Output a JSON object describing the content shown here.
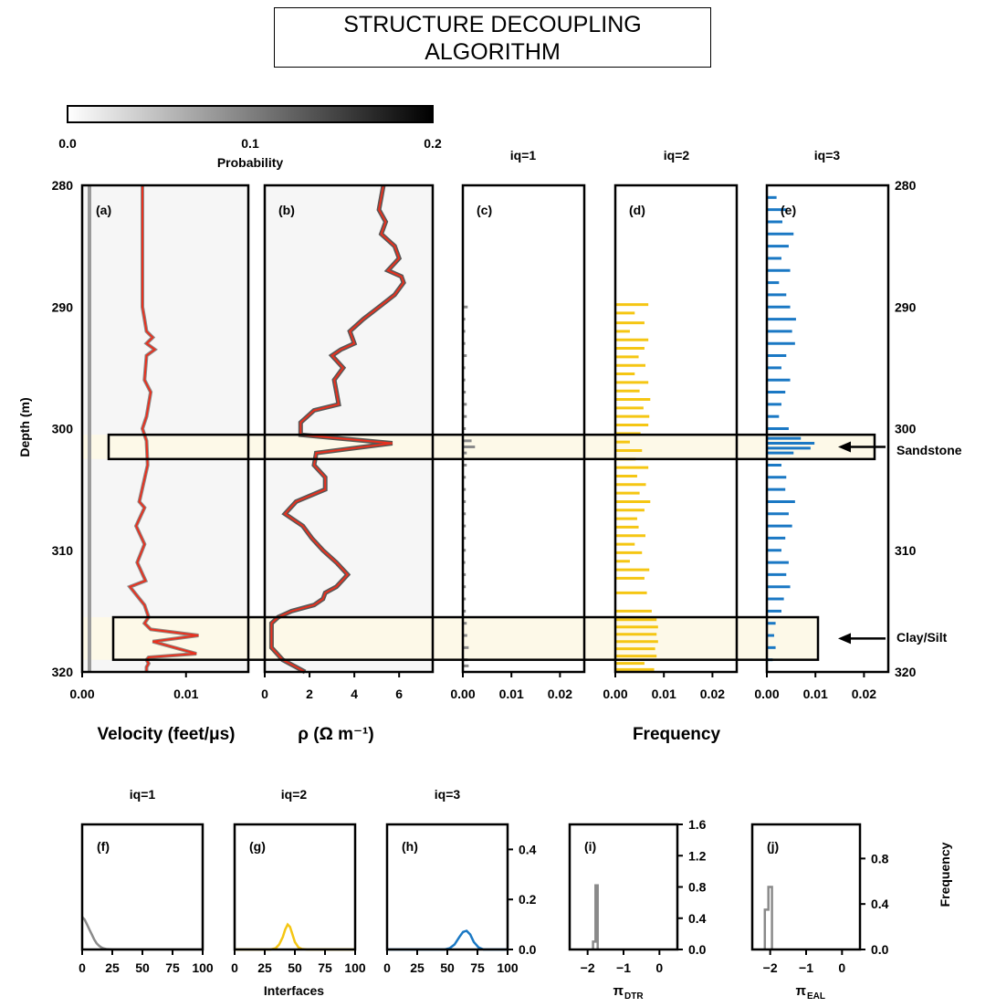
{
  "title_lines": [
    "STRUCTURE DECOUPLING",
    "ALGORITHM"
  ],
  "colorbar": {
    "ticks": [
      "0.0",
      "0.1",
      "0.2"
    ],
    "label": "Probability",
    "range": [
      0.0,
      0.2
    ],
    "colors": [
      "#ffffff",
      "#000000"
    ]
  },
  "chart_data": [
    {
      "panel": "(a)",
      "type": "line",
      "xlabel": "Velocity (feet/μs)",
      "ylabel": "Depth (m)",
      "xlim": [
        0,
        0.016
      ],
      "ylim": [
        320,
        280
      ],
      "x_ticks": [
        0.0,
        0.01
      ],
      "x_tick_labels": [
        "0.00",
        "0.01"
      ],
      "y_ticks": [
        280,
        290,
        300,
        310,
        320
      ],
      "y_tick_labels": [
        "280",
        "290",
        "300",
        "310",
        "320"
      ],
      "series": [
        {
          "color": "#e8311f",
          "x": [
            0.0058,
            0.0058,
            0.0058,
            0.006,
            0.0062,
            0.0068,
            0.0062,
            0.007,
            0.0062,
            0.006,
            0.0066,
            0.0062,
            0.0058,
            0.0062,
            0.0063,
            0.0055,
            0.006,
            0.0052,
            0.006,
            0.0053,
            0.0061,
            0.0046,
            0.006,
            0.0064,
            0.006,
            0.0066,
            0.0112,
            0.0068,
            0.011,
            0.0064,
            0.0062,
            0.0064,
            0.0062,
            0.0062
          ],
          "y": [
            280,
            285,
            290,
            291,
            292,
            292.5,
            293,
            293.5,
            294,
            296,
            297,
            299,
            300,
            301,
            303,
            306,
            306.5,
            308,
            309.5,
            311,
            312.5,
            313,
            314.5,
            315.5,
            316,
            316.5,
            317,
            317.5,
            318.5,
            318.8,
            319,
            319.3,
            319.6,
            320
          ]
        },
        {
          "color": "#9a9a9a",
          "x": [
            0.0007,
            0.0007
          ],
          "y": [
            280,
            320
          ]
        }
      ]
    },
    {
      "panel": "(b)",
      "type": "line",
      "xlabel": "ρ (Ω m⁻¹)",
      "xlim": [
        0,
        7.5
      ],
      "ylim": [
        320,
        280
      ],
      "x_ticks": [
        0,
        2,
        4,
        6
      ],
      "x_tick_labels": [
        "0",
        "2",
        "4",
        "6"
      ],
      "series": [
        {
          "color": "#e8311f",
          "x": [
            5.3,
            5.1,
            5.4,
            5.2,
            5.8,
            6.0,
            5.5,
            6.1,
            6.2,
            5.8,
            5.1,
            4.4,
            3.8,
            4.0,
            3.4,
            3.0,
            3.5,
            3.1,
            3.3,
            2.2,
            1.6,
            1.6,
            5.7,
            2.3,
            2.2,
            2.7,
            2.7,
            1.4,
            0.9,
            1.7,
            2.1,
            2.6,
            3.2,
            3.7,
            3.2,
            2.7,
            2.6,
            2.2,
            1.2,
            0.6,
            0.3,
            0.3,
            0.3,
            0.8,
            1.3,
            1.8
          ],
          "y": [
            280,
            282,
            283,
            284,
            285,
            286,
            287,
            287.5,
            288,
            289,
            290,
            291,
            292,
            293,
            293.5,
            294,
            295,
            296,
            298,
            298.5,
            299.5,
            300.5,
            301.2,
            302,
            303,
            304,
            305,
            306,
            307,
            308,
            309,
            310,
            311,
            312,
            313,
            313.5,
            314,
            314.5,
            315,
            315.5,
            316,
            317,
            318,
            319,
            319.5,
            320
          ]
        }
      ]
    },
    {
      "panel": "(c)",
      "type": "bar",
      "title": "iq=1",
      "xlim": [
        0,
        0.025
      ],
      "ylim": [
        320,
        280
      ],
      "x_tick_labels": [
        "0.00",
        "0.01",
        "0.02"
      ],
      "series": [
        {
          "color": "#8a8a8a",
          "y": [
            290,
            291,
            292,
            293,
            294,
            295,
            296,
            297,
            298,
            299,
            300,
            301,
            301.5,
            302,
            303,
            304,
            305,
            306,
            307,
            308,
            309,
            310,
            311,
            312,
            313,
            314,
            315,
            316,
            317,
            318,
            319,
            319.5
          ],
          "x": [
            0.001,
            0.0005,
            0.0005,
            0.0005,
            0.0008,
            0.0005,
            0.0005,
            0.0006,
            0.0008,
            0.0008,
            0.0006,
            0.0018,
            0.0025,
            0.0008,
            0.0008,
            0.0006,
            0.0006,
            0.0006,
            0.0006,
            0.0006,
            0.0006,
            0.0006,
            0.0005,
            0.0006,
            0.0006,
            0.0006,
            0.0006,
            0.0008,
            0.0009,
            0.0012,
            0.001,
            0.0012
          ]
        }
      ]
    },
    {
      "panel": "(d)",
      "type": "bar",
      "title": "iq=2",
      "xlim": [
        0,
        0.025
      ],
      "ylim": [
        320,
        280
      ],
      "x_tick_labels": [
        "0.00",
        "0.01",
        "0.02"
      ],
      "series": [
        {
          "color": "#f5c613",
          "y": [
            289.8,
            290.5,
            291.3,
            292,
            292.7,
            293.4,
            294.1,
            294.8,
            295.5,
            296.2,
            296.9,
            297.6,
            298.3,
            299,
            299.7,
            300.4,
            301.1,
            301.8,
            302.5,
            303.2,
            303.9,
            304.6,
            305.3,
            306,
            306.7,
            307.4,
            308.1,
            308.8,
            309.5,
            310.2,
            310.9,
            311.6,
            312.3,
            313.5,
            315,
            315.7,
            316.3,
            316.9,
            317.5,
            318.1,
            318.7,
            319.3,
            319.8
          ],
          "x": [
            0.0068,
            0.004,
            0.006,
            0.003,
            0.0068,
            0.006,
            0.0048,
            0.0062,
            0.004,
            0.0068,
            0.005,
            0.0072,
            0.0058,
            0.007,
            0.0068,
            0.0052,
            0.003,
            0.0055,
            0.0042,
            0.0068,
            0.0045,
            0.0063,
            0.005,
            0.0072,
            0.006,
            0.0045,
            0.0048,
            0.0062,
            0.004,
            0.0055,
            0.003,
            0.007,
            0.006,
            0.0065,
            0.0075,
            0.0085,
            0.0088,
            0.0085,
            0.0088,
            0.0082,
            0.0085,
            0.006,
            0.008
          ]
        }
      ]
    },
    {
      "panel": "(e)",
      "type": "bar",
      "title": "iq=3",
      "xlim": [
        0,
        0.025
      ],
      "ylim": [
        320,
        280
      ],
      "x_tick_labels": [
        "0.00",
        "0.01",
        "0.02"
      ],
      "series": [
        {
          "color": "#1a78c4",
          "y": [
            281,
            282,
            283,
            284,
            285,
            286,
            287,
            288,
            289,
            290,
            291,
            292,
            293,
            294,
            295,
            296,
            297,
            298,
            299,
            300,
            300.8,
            301.2,
            301.6,
            302,
            303,
            304,
            305,
            306,
            307,
            308,
            309,
            310,
            311,
            312,
            313,
            314,
            315,
            316,
            317,
            318,
            319
          ],
          "x": [
            0.002,
            0.004,
            0.0032,
            0.0055,
            0.0045,
            0.003,
            0.0048,
            0.0025,
            0.004,
            0.0048,
            0.006,
            0.0052,
            0.0058,
            0.004,
            0.003,
            0.0048,
            0.0038,
            0.003,
            0.0025,
            0.0045,
            0.007,
            0.0098,
            0.009,
            0.0055,
            0.003,
            0.004,
            0.0038,
            0.0058,
            0.0045,
            0.0052,
            0.0038,
            0.003,
            0.0045,
            0.004,
            0.0048,
            0.0035,
            0.003,
            0.0018,
            0.0015,
            0.0018,
            0.0012
          ]
        }
      ]
    },
    {
      "panel": "(f)",
      "type": "line",
      "title": "iq=1",
      "xlim": [
        0,
        100
      ],
      "ylim": [
        0,
        0.5
      ],
      "x_ticks": [
        0,
        25,
        50,
        75,
        100
      ],
      "series": [
        {
          "color": "#8a8a8a",
          "x": [
            0,
            2,
            4,
            6,
            8,
            10,
            12,
            14,
            16,
            18,
            20,
            25,
            100
          ],
          "y": [
            0.13,
            0.12,
            0.1,
            0.08,
            0.06,
            0.04,
            0.025,
            0.015,
            0.008,
            0.004,
            0.002,
            0,
            0
          ]
        }
      ]
    },
    {
      "panel": "(g)",
      "type": "line",
      "title": "iq=2",
      "xlim": [
        0,
        100
      ],
      "ylim": [
        0,
        0.5
      ],
      "x_ticks": [
        0,
        25,
        50,
        75,
        100
      ],
      "series": [
        {
          "color": "#f5c613",
          "x": [
            0,
            30,
            34,
            37,
            40,
            42,
            44,
            46,
            48,
            50,
            53,
            56,
            60,
            100
          ],
          "y": [
            0,
            0,
            0.005,
            0.02,
            0.05,
            0.08,
            0.1,
            0.09,
            0.06,
            0.03,
            0.008,
            0.002,
            0,
            0
          ]
        }
      ]
    },
    {
      "panel": "(h)",
      "type": "line",
      "title": "iq=3",
      "xlim": [
        0,
        100
      ],
      "ylim": [
        0,
        0.5
      ],
      "x_ticks": [
        0,
        25,
        50,
        75,
        100
      ],
      "y_ticks": [
        0.0,
        0.2,
        0.4
      ],
      "y_tick_labels": [
        "0.0",
        "0.2",
        "0.4"
      ],
      "xlabel": "Interfaces",
      "series": [
        {
          "color": "#1a78c4",
          "x": [
            0,
            48,
            52,
            56,
            60,
            63,
            66,
            69,
            72,
            76,
            80,
            100
          ],
          "y": [
            0,
            0,
            0.005,
            0.02,
            0.05,
            0.07,
            0.075,
            0.06,
            0.03,
            0.008,
            0,
            0
          ]
        }
      ]
    },
    {
      "panel": "(i)",
      "type": "line",
      "xlabel": "π_DTR",
      "xlim": [
        -2.5,
        0.5
      ],
      "ylim": [
        0,
        1.6
      ],
      "x_ticks": [
        -2,
        -1,
        0
      ],
      "y_ticks": [
        0.0,
        0.4,
        0.8,
        1.2,
        1.6
      ],
      "y_tick_labels": [
        "0.0",
        "0.4",
        "0.8",
        "1.2",
        "1.6"
      ],
      "series": [
        {
          "color": "#8a8a8a",
          "x": [
            -1.85,
            -1.85,
            -1.78,
            -1.78,
            -1.72,
            -1.72
          ],
          "y": [
            0,
            0.1,
            0.1,
            0.82,
            0.82,
            0
          ]
        }
      ]
    },
    {
      "panel": "(j)",
      "type": "line",
      "xlabel": "π_EAL",
      "xlim": [
        -2.5,
        0.5
      ],
      "ylim": [
        0,
        1.1
      ],
      "x_ticks": [
        -2,
        -1,
        0
      ],
      "y_ticks": [
        0.0,
        0.4,
        0.8
      ],
      "y_tick_labels": [
        "0.0",
        "0.4",
        "0.8"
      ],
      "ylabel": "Frequency",
      "series": [
        {
          "color": "#8a8a8a",
          "x": [
            -2.15,
            -2.15,
            -2.05,
            -2.05,
            -1.95,
            -1.95
          ],
          "y": [
            0,
            0.35,
            0.35,
            0.55,
            0.55,
            0
          ]
        }
      ]
    }
  ],
  "labels": {
    "depth_label": "Depth (m)",
    "velocity_label": "Velocity (feet/μs)",
    "rho_label": "ρ (Ω m⁻¹)",
    "frequency_label": "Frequency",
    "iq1": "iq=1",
    "iq2": "iq=2",
    "iq3": "iq=3",
    "interfaces_label": "Interfaces",
    "pi_dtr_main": "π",
    "pi_dtr_sub": "DTR",
    "pi_eal_main": "π",
    "pi_eal_sub": "EAL",
    "frequency_side": "Frequency"
  },
  "annotations": [
    {
      "label": "Sandstone",
      "depth_range": [
        300.5,
        302.5
      ]
    },
    {
      "label": "Clay/Silt",
      "depth_range": [
        315.5,
        319
      ]
    }
  ],
  "highlight_color": "#fdf9e8"
}
